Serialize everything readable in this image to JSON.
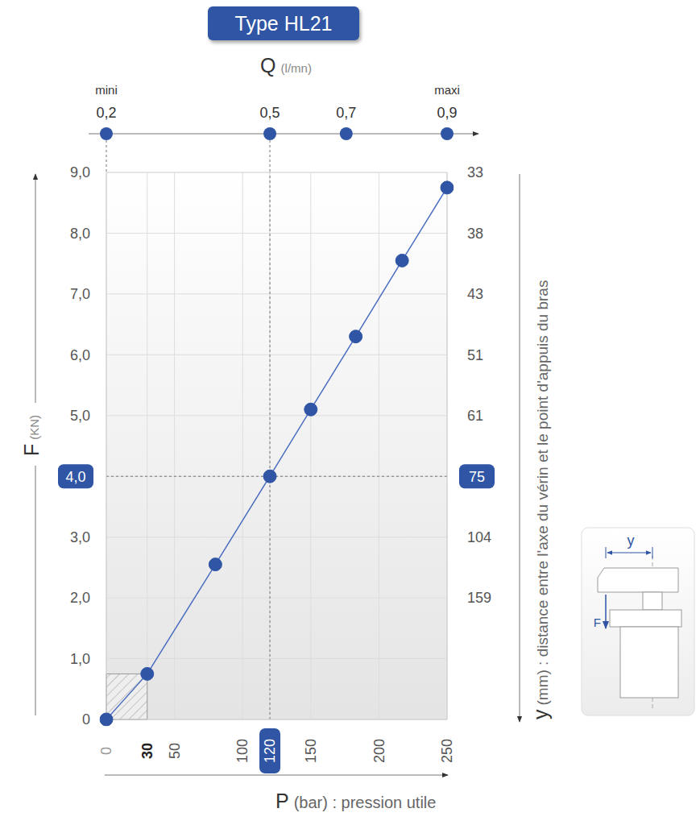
{
  "chart_data": {
    "type": "line",
    "title": "Type HL21",
    "x_label": {
      "symbol": "P",
      "text": "(bar) : pression utile"
    },
    "y_label": {
      "symbol": "F",
      "text": "(KN)"
    },
    "x": [
      0,
      30,
      80,
      120,
      150,
      183,
      217,
      250
    ],
    "values": [
      0,
      0.75,
      2.55,
      4.0,
      5.1,
      6.3,
      7.55,
      8.75
    ],
    "color": "#2f55a4",
    "marker": "circle",
    "line_style": "solid",
    "xlim": [
      0,
      250
    ],
    "xticks": [
      0,
      30,
      50,
      100,
      120,
      150,
      200,
      250
    ],
    "ylim": [
      0,
      9
    ],
    "yticks": [
      0,
      {
        "value": 1,
        "label": "1,0"
      },
      {
        "value": 2,
        "label": "2,0"
      },
      {
        "value": 3,
        "label": "3,0"
      },
      {
        "value": 4,
        "label": "4,0"
      },
      {
        "value": 5,
        "label": "5,0"
      },
      {
        "value": 6,
        "label": "6,0"
      },
      {
        "value": 7,
        "label": "7,0"
      },
      {
        "value": 8,
        "label": "8,0"
      },
      {
        "value": 9,
        "label": "9,0"
      }
    ],
    "grid": true,
    "x2_axis": {
      "symbol": "Q",
      "text": "(l/mn)",
      "ticks": [
        {
          "value": 0.2,
          "label": "0,2",
          "p": 0
        },
        {
          "value": 0.5,
          "label": "0,5",
          "p": 120
        },
        {
          "value": 0.7,
          "label": "0,7",
          "p": 176
        },
        {
          "value": 0.9,
          "label": "0,9",
          "p": 250
        }
      ],
      "end_labels": [
        "mini",
        "maxi"
      ]
    },
    "y2_axis": {
      "symbol": "y",
      "text": "(mm) : distance entre l'axe du vérin et le point d'appuis du bras",
      "ticks": [
        {
          "value": 33,
          "f": 9
        },
        {
          "value": 38,
          "f": 8
        },
        {
          "value": 43,
          "f": 7
        },
        {
          "value": 51,
          "f": 6
        },
        {
          "value": 61,
          "f": 5
        },
        {
          "value": 75,
          "f": 4
        },
        {
          "value": 104,
          "f": 3
        },
        {
          "value": 159,
          "f": 2
        }
      ]
    },
    "reference": {
      "p": 120,
      "f": 4.0,
      "q": 0.5,
      "y": 75
    },
    "shaded_region": {
      "x": [
        0,
        30
      ],
      "y": [
        0,
        0.75
      ]
    },
    "inset": {
      "dimension": "y",
      "force": "F"
    }
  }
}
